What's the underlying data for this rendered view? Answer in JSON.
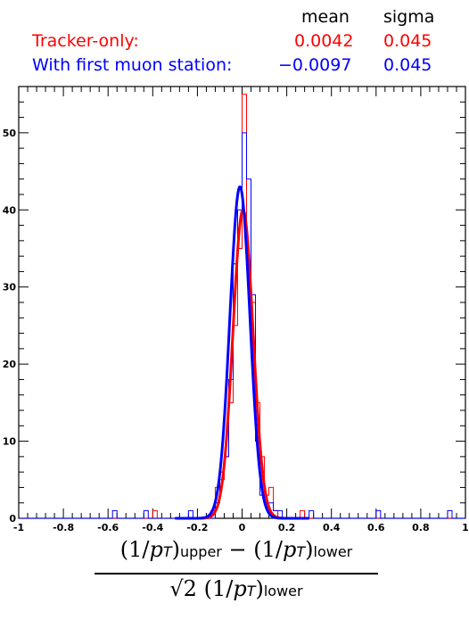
{
  "legend": {
    "header_mean": "mean",
    "header_sigma": "sigma",
    "rows": [
      {
        "label": "Tracker-only:",
        "mean": "0.0042",
        "sigma": "0.045",
        "color": "#ff0000"
      },
      {
        "label": "With first muon station:",
        "mean": "−0.0097",
        "sigma": "0.045",
        "color": "#0000ff"
      }
    ]
  },
  "xlabel": {
    "num_a": "(1/",
    "p": "p",
    "T": "T",
    "num_b": ")",
    "upper": "upper",
    "minus": " − (1/",
    "num_c": ")",
    "lower": "lower",
    "den_a": "√2 (1/",
    "den_b": ")"
  },
  "chart_data": {
    "type": "histogram",
    "xlim": [
      -1,
      1
    ],
    "ylim": [
      0,
      56
    ],
    "xticks": [
      "-1",
      "-0.8",
      "-0.6",
      "-0.4",
      "-0.2",
      "0",
      "0.2",
      "0.4",
      "0.6",
      "0.8",
      "1"
    ],
    "yticks": [
      "0",
      "10",
      "20",
      "30",
      "40",
      "50"
    ],
    "bin_width": 0.02,
    "series": [
      {
        "name": "Tracker-only",
        "color": "#ff0000",
        "fit_mean": 0.0042,
        "fit_sigma": 0.045,
        "fit_amplitude": 40,
        "bins": [
          {
            "x": -0.4,
            "y": 1
          },
          {
            "x": -0.14,
            "y": 1
          },
          {
            "x": -0.12,
            "y": 4
          },
          {
            "x": -0.1,
            "y": 5
          },
          {
            "x": -0.08,
            "y": 8
          },
          {
            "x": -0.06,
            "y": 15
          },
          {
            "x": -0.04,
            "y": 25
          },
          {
            "x": -0.02,
            "y": 35
          },
          {
            "x": 0.0,
            "y": 55
          },
          {
            "x": 0.02,
            "y": 33
          },
          {
            "x": 0.04,
            "y": 28
          },
          {
            "x": 0.06,
            "y": 15
          },
          {
            "x": 0.08,
            "y": 8
          },
          {
            "x": 0.1,
            "y": 3
          },
          {
            "x": 0.12,
            "y": 4
          },
          {
            "x": 0.14,
            "y": 1
          },
          {
            "x": 0.26,
            "y": 1
          }
        ]
      },
      {
        "name": "With first muon station",
        "color": "#0000ff",
        "fit_mean": -0.0097,
        "fit_sigma": 0.045,
        "fit_amplitude": 43,
        "bins": [
          {
            "x": -0.58,
            "y": 1
          },
          {
            "x": -0.44,
            "y": 1
          },
          {
            "x": -0.24,
            "y": 1
          },
          {
            "x": -0.12,
            "y": 2
          },
          {
            "x": -0.1,
            "y": 6
          },
          {
            "x": -0.08,
            "y": 8
          },
          {
            "x": -0.06,
            "y": 18
          },
          {
            "x": -0.04,
            "y": 33
          },
          {
            "x": -0.02,
            "y": 40
          },
          {
            "x": 0.0,
            "y": 50
          },
          {
            "x": 0.02,
            "y": 44
          },
          {
            "x": 0.04,
            "y": 29
          },
          {
            "x": 0.06,
            "y": 10
          },
          {
            "x": 0.08,
            "y": 3
          },
          {
            "x": 0.1,
            "y": 2
          },
          {
            "x": 0.12,
            "y": 2
          },
          {
            "x": 0.14,
            "y": 1
          },
          {
            "x": 0.16,
            "y": 1
          },
          {
            "x": 0.3,
            "y": 1
          },
          {
            "x": 0.6,
            "y": 1
          },
          {
            "x": 0.92,
            "y": 1
          }
        ]
      }
    ]
  }
}
